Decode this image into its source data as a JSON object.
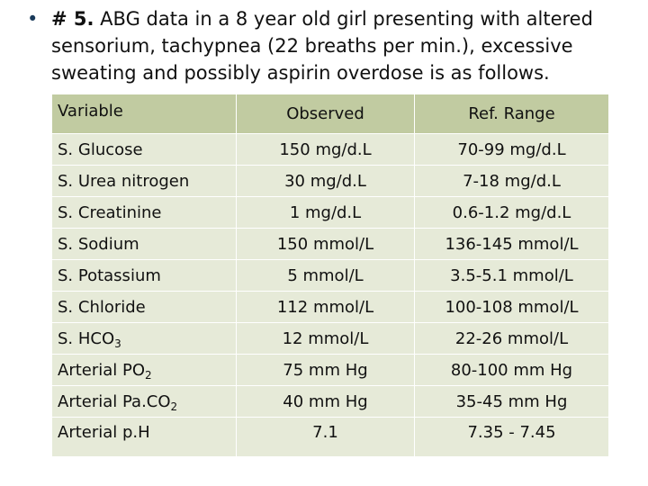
{
  "intro": {
    "bullet": "•",
    "number_label": "# 5.",
    "text": " ABG data in a 8 year old girl presenting with altered sensorium, tachypnea (22 breaths per min.), excessive sweating and possibly aspirin overdose is as follows."
  },
  "table": {
    "headers": [
      "Variable",
      "Observed",
      "Ref. Range"
    ],
    "rows": [
      {
        "variable": "S. Glucose",
        "sub": "",
        "observed": "150 mg/d.L",
        "range": "70-99 mg/d.L"
      },
      {
        "variable": "S. Urea nitrogen",
        "sub": "",
        "observed": "30 mg/d.L",
        "range": "7-18 mg/d.L"
      },
      {
        "variable": "S. Creatinine",
        "sub": "",
        "observed": "1 mg/d.L",
        "range": "0.6-1.2 mg/d.L"
      },
      {
        "variable": "S. Sodium",
        "sub": "",
        "observed": "150 mmol/L",
        "range": "136-145 mmol/L"
      },
      {
        "variable": "S. Potassium",
        "sub": "",
        "observed": "5 mmol/L",
        "range": "3.5-5.1 mmol/L"
      },
      {
        "variable": "S. Chloride",
        "sub": "",
        "observed": "112 mmol/L",
        "range": "100-108 mmol/L"
      },
      {
        "variable": "S. HCO",
        "sub": "3",
        "observed": "12 mmol/L",
        "range": "22-26 mmol/L"
      },
      {
        "variable": "Arterial PO",
        "sub": "2",
        "observed": "75 mm Hg",
        "range": "80-100 mm Hg"
      },
      {
        "variable": "Arterial Pa.CO",
        "sub": "2",
        "observed": "40 mm Hg",
        "range": "35-45 mm Hg"
      },
      {
        "variable": "Arterial p.H",
        "sub": "",
        "observed": "7.1",
        "range": "7.35 - 7.45"
      }
    ]
  }
}
